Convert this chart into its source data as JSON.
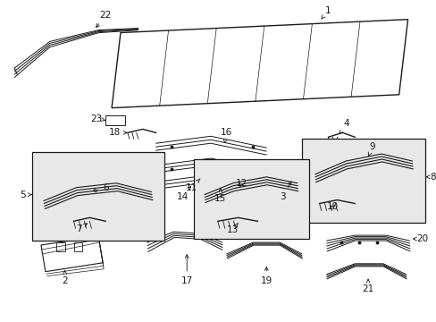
{
  "bg_color": "#ffffff",
  "line_color": "#1a1a1a",
  "box_fill": "#e8e8e8",
  "fig_width": 4.89,
  "fig_height": 3.6,
  "dpi": 100
}
